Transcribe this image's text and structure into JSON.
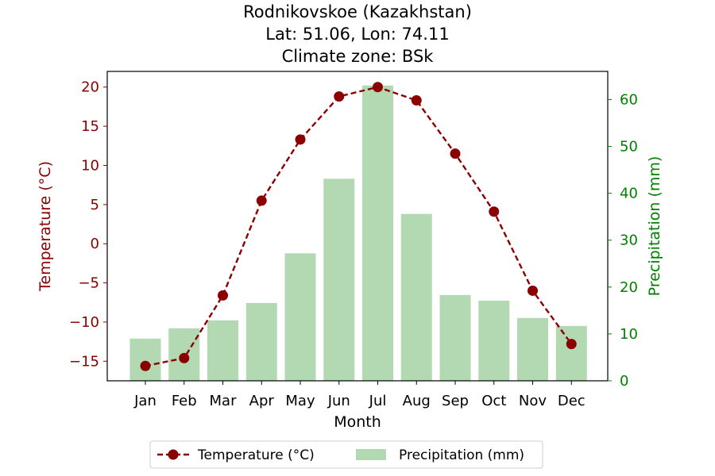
{
  "chart_data": {
    "type": "bar+line",
    "title_lines": [
      "Rodnikovskoe (Kazakhstan)",
      "Lat: 51.06, Lon: 74.11",
      "Climate zone: BSk"
    ],
    "xlabel": "Month",
    "ylabel_left": "Temperature (°C)",
    "ylabel_right": "Precipitation (mm)",
    "categories": [
      "Jan",
      "Feb",
      "Mar",
      "Apr",
      "May",
      "Jun",
      "Jul",
      "Aug",
      "Sep",
      "Oct",
      "Nov",
      "Dec"
    ],
    "temperature": {
      "name": "Temperature (°C)",
      "values": [
        -15.6,
        -14.6,
        -6.6,
        5.5,
        13.3,
        18.8,
        20.0,
        18.3,
        11.5,
        4.1,
        -6.0,
        -12.8
      ],
      "color": "#8b0000",
      "ylim": [
        -17.5,
        22.0
      ],
      "ticks": [
        -15,
        -10,
        -5,
        0,
        5,
        10,
        15,
        20
      ]
    },
    "precipitation": {
      "name": "Precipitation (mm)",
      "values": [
        9.0,
        11.2,
        12.9,
        16.6,
        27.2,
        43.1,
        63.0,
        35.6,
        18.3,
        17.1,
        13.4,
        11.7
      ],
      "color": "#b2d9b2",
      "ylim": [
        0,
        66
      ],
      "ticks": [
        0,
        10,
        20,
        30,
        40,
        50,
        60
      ]
    },
    "left_axis_color": "#8b0000",
    "right_axis_color": "#008000",
    "legend_position": "bottom-center"
  }
}
